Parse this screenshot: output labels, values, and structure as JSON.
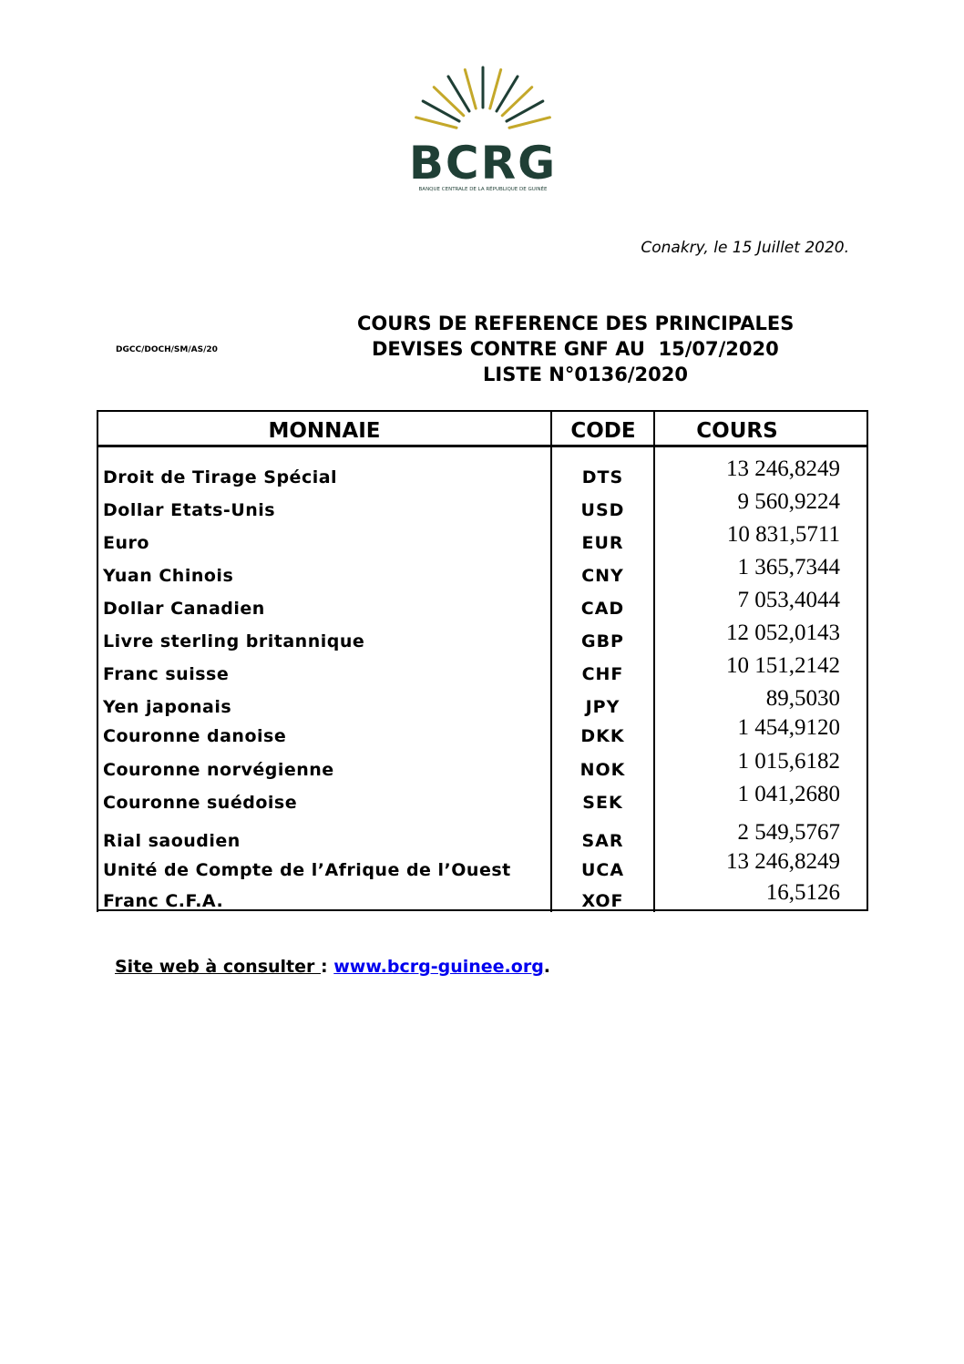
{
  "logo": {
    "text": "BCRG",
    "subtitle": "BANQUE CENTRALE DE LA RÉPUBLIQUE DE GUINÉE",
    "colors": {
      "green": "#1f3f35",
      "gold": "#c4a82a"
    }
  },
  "date": "Conakry, le 15 Juillet 2020.",
  "reference": "DGCC/DOCH/SM/AS/20",
  "title": {
    "line1": "COURS DE REFERENCE DES PRINCIPALES",
    "line2": "DEVISES CONTRE GNF AU  15/07/2020",
    "line3": "LISTE N°0136/2020"
  },
  "table": {
    "headers": {
      "currency": "MONNAIE",
      "code": "CODE",
      "rate": "COURS"
    },
    "rows": [
      {
        "name": "Droit de Tirage Spécial",
        "code": "DTS",
        "rate": "13 246,8249"
      },
      {
        "name": "Dollar Etats-Unis",
        "code": "USD",
        "rate": "9 560,9224"
      },
      {
        "name": "Euro",
        "code": "EUR",
        "rate": "10 831,5711"
      },
      {
        "name": "Yuan Chinois",
        "code": "CNY",
        "rate": "1 365,7344"
      },
      {
        "name": "Dollar Canadien",
        "code": "CAD",
        "rate": "7 053,4044"
      },
      {
        "name": "Livre sterling britannique",
        "code": "GBP",
        "rate": "12 052,0143"
      },
      {
        "name": "Franc suisse",
        "code": "CHF",
        "rate": "10 151,2142"
      },
      {
        "name": "Yen japonais",
        "code": "JPY",
        "rate": "89,5030"
      },
      {
        "name": "Couronne danoise",
        "code": "DKK",
        "rate": "1 454,9120"
      },
      {
        "name": "Couronne norvégienne",
        "code": "NOK",
        "rate": "1 015,6182"
      },
      {
        "name": "Couronne suédoise",
        "code": "SEK",
        "rate": "1 041,2680"
      },
      {
        "name": "Rial saoudien",
        "code": "SAR",
        "rate": "2 549,5767"
      },
      {
        "name": "Unité de Compte de l’Afrique de l’Ouest",
        "code": "UCA",
        "rate": "13 246,8249"
      },
      {
        "name": "Franc C.F.A.",
        "code": "XOF",
        "rate": "16,5126"
      }
    ]
  },
  "footer": {
    "label": "Site web à consulter ",
    "sep": " : ",
    "link": "www.bcrg-guinee.org",
    "end": "."
  }
}
